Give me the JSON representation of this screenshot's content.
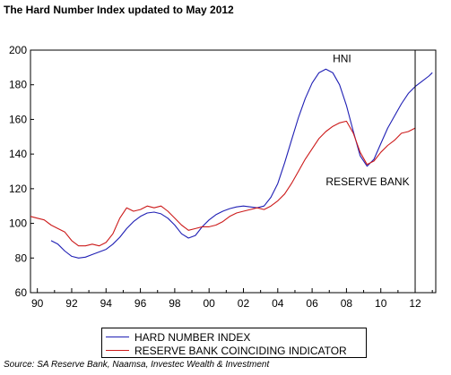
{
  "title": "The Hard Number Index updated to May 2012",
  "source": "Source: SA Reserve Bank, Naamsa, Investec Wealth & Investment",
  "chart_data": {
    "type": "line",
    "title": "The Hard Number Index updated to May 2012",
    "xlabel": "",
    "ylabel": "",
    "xlim": [
      1989.6,
      2013.2
    ],
    "ylim": [
      60,
      200
    ],
    "y_ticks": [
      60,
      80,
      100,
      120,
      140,
      160,
      180,
      200
    ],
    "x_ticks": [
      1990,
      1992,
      1994,
      1996,
      1998,
      2000,
      2002,
      2004,
      2006,
      2008,
      2010,
      2012
    ],
    "x_tick_labels": [
      "90",
      "92",
      "94",
      "96",
      "98",
      "00",
      "02",
      "04",
      "06",
      "08",
      "10",
      "12"
    ],
    "grid": false,
    "legend_position": "bottom",
    "vertical_marker_x": 2012.0,
    "annotations": [
      {
        "text": "HNI",
        "x": 2007.2,
        "y": 193
      },
      {
        "text": "RESERVE BANK",
        "x": 2006.8,
        "y": 122
      }
    ],
    "series": [
      {
        "name": "HARD NUMBER INDEX",
        "color": "#1f1fb4",
        "points": [
          [
            1990.8,
            90
          ],
          [
            1991.2,
            88
          ],
          [
            1991.6,
            84
          ],
          [
            1992.0,
            81
          ],
          [
            1992.4,
            80
          ],
          [
            1992.8,
            80.5
          ],
          [
            1993.2,
            82
          ],
          [
            1993.6,
            83.5
          ],
          [
            1994.0,
            85
          ],
          [
            1994.4,
            88
          ],
          [
            1994.8,
            92
          ],
          [
            1995.2,
            97
          ],
          [
            1995.6,
            101
          ],
          [
            1996.0,
            104
          ],
          [
            1996.4,
            106
          ],
          [
            1996.8,
            106.5
          ],
          [
            1997.2,
            105.5
          ],
          [
            1997.6,
            103
          ],
          [
            1998.0,
            99
          ],
          [
            1998.4,
            94
          ],
          [
            1998.8,
            91.5
          ],
          [
            1999.2,
            93
          ],
          [
            1999.6,
            98
          ],
          [
            2000.0,
            102
          ],
          [
            2000.4,
            105
          ],
          [
            2000.8,
            107
          ],
          [
            2001.2,
            108.5
          ],
          [
            2001.6,
            109.5
          ],
          [
            2002.0,
            110
          ],
          [
            2002.4,
            109.5
          ],
          [
            2002.8,
            109
          ],
          [
            2003.2,
            110
          ],
          [
            2003.6,
            115
          ],
          [
            2004.0,
            123
          ],
          [
            2004.4,
            135
          ],
          [
            2004.8,
            148
          ],
          [
            2005.2,
            161
          ],
          [
            2005.6,
            172
          ],
          [
            2006.0,
            181
          ],
          [
            2006.4,
            187
          ],
          [
            2006.8,
            189
          ],
          [
            2007.2,
            187
          ],
          [
            2007.6,
            180
          ],
          [
            2008.0,
            168
          ],
          [
            2008.4,
            153
          ],
          [
            2008.8,
            139
          ],
          [
            2009.2,
            133
          ],
          [
            2009.6,
            137
          ],
          [
            2010.0,
            146
          ],
          [
            2010.4,
            155
          ],
          [
            2010.8,
            162
          ],
          [
            2011.2,
            169
          ],
          [
            2011.6,
            175
          ],
          [
            2012.0,
            179
          ],
          [
            2012.4,
            182
          ],
          [
            2012.8,
            185
          ],
          [
            2013.0,
            187
          ]
        ]
      },
      {
        "name": "RESERVE BANK COINCIDING INDICATOR",
        "color": "#cc1a1a",
        "points": [
          [
            1989.6,
            104
          ],
          [
            1990.0,
            103
          ],
          [
            1990.4,
            102
          ],
          [
            1990.8,
            99
          ],
          [
            1991.2,
            97
          ],
          [
            1991.6,
            95
          ],
          [
            1992.0,
            90
          ],
          [
            1992.4,
            87
          ],
          [
            1992.8,
            87
          ],
          [
            1993.2,
            88
          ],
          [
            1993.6,
            87
          ],
          [
            1994.0,
            89
          ],
          [
            1994.4,
            94
          ],
          [
            1994.8,
            103
          ],
          [
            1995.2,
            109
          ],
          [
            1995.6,
            107
          ],
          [
            1996.0,
            108
          ],
          [
            1996.4,
            110
          ],
          [
            1996.8,
            109
          ],
          [
            1997.2,
            110
          ],
          [
            1997.6,
            107
          ],
          [
            1998.0,
            103
          ],
          [
            1998.4,
            99
          ],
          [
            1998.8,
            96
          ],
          [
            1999.2,
            97
          ],
          [
            1999.6,
            98
          ],
          [
            2000.0,
            98
          ],
          [
            2000.4,
            99
          ],
          [
            2000.8,
            101
          ],
          [
            2001.2,
            104
          ],
          [
            2001.6,
            106
          ],
          [
            2002.0,
            107
          ],
          [
            2002.4,
            108
          ],
          [
            2002.8,
            109
          ],
          [
            2003.2,
            108
          ],
          [
            2003.6,
            110
          ],
          [
            2004.0,
            113
          ],
          [
            2004.4,
            117
          ],
          [
            2004.8,
            123
          ],
          [
            2005.2,
            130
          ],
          [
            2005.6,
            137
          ],
          [
            2006.0,
            143
          ],
          [
            2006.4,
            149
          ],
          [
            2006.8,
            153
          ],
          [
            2007.2,
            156
          ],
          [
            2007.6,
            158
          ],
          [
            2008.0,
            159
          ],
          [
            2008.4,
            152
          ],
          [
            2008.8,
            141
          ],
          [
            2009.2,
            134
          ],
          [
            2009.6,
            136
          ],
          [
            2010.0,
            141
          ],
          [
            2010.4,
            145
          ],
          [
            2010.8,
            148
          ],
          [
            2011.2,
            152
          ],
          [
            2011.6,
            153
          ],
          [
            2012.0,
            155
          ]
        ]
      }
    ]
  }
}
